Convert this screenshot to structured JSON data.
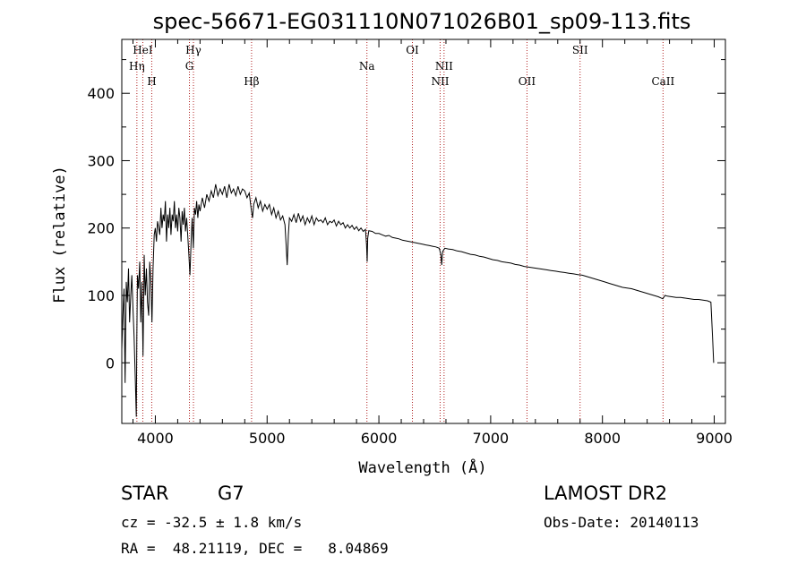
{
  "chart_data": {
    "type": "line",
    "title": "spec-56671-EG031110N071026B01_sp09-113.fits",
    "xlabel": "Wavelength (Å)",
    "ylabel": "Flux (relative)",
    "xlim": [
      3700,
      9100
    ],
    "ylim": [
      -90,
      480
    ],
    "x_ticks": [
      4000,
      5000,
      6000,
      7000,
      8000,
      9000
    ],
    "y_ticks": [
      0,
      100,
      200,
      300,
      400
    ],
    "grid": false,
    "series": [
      {
        "points": [
          [
            3700,
            20
          ],
          [
            3710,
            70
          ],
          [
            3720,
            110
          ],
          [
            3730,
            -30
          ],
          [
            3740,
            120
          ],
          [
            3750,
            90
          ],
          [
            3760,
            140
          ],
          [
            3770,
            60
          ],
          [
            3780,
            100
          ],
          [
            3790,
            130
          ],
          [
            3800,
            80
          ],
          [
            3810,
            40
          ],
          [
            3820,
            -20
          ],
          [
            3830,
            -80
          ],
          [
            3835,
            40
          ],
          [
            3840,
            130
          ],
          [
            3850,
            110
          ],
          [
            3860,
            150
          ],
          [
            3870,
            60
          ],
          [
            3880,
            120
          ],
          [
            3890,
            10
          ],
          [
            3900,
            160
          ],
          [
            3910,
            100
          ],
          [
            3920,
            140
          ],
          [
            3930,
            90
          ],
          [
            3940,
            70
          ],
          [
            3950,
            150
          ],
          [
            3960,
            120
          ],
          [
            3970,
            60
          ],
          [
            3980,
            140
          ],
          [
            3990,
            190
          ],
          [
            4000,
            200
          ],
          [
            4010,
            180
          ],
          [
            4020,
            210
          ],
          [
            4030,
            200
          ],
          [
            4040,
            190
          ],
          [
            4050,
            230
          ],
          [
            4060,
            200
          ],
          [
            4070,
            220
          ],
          [
            4080,
            210
          ],
          [
            4090,
            240
          ],
          [
            4100,
            180
          ],
          [
            4110,
            220
          ],
          [
            4120,
            200
          ],
          [
            4130,
            230
          ],
          [
            4140,
            190
          ],
          [
            4150,
            220
          ],
          [
            4160,
            210
          ],
          [
            4170,
            240
          ],
          [
            4180,
            200
          ],
          [
            4190,
            220
          ],
          [
            4200,
            195
          ],
          [
            4210,
            230
          ],
          [
            4220,
            215
          ],
          [
            4230,
            180
          ],
          [
            4240,
            225
          ],
          [
            4250,
            205
          ],
          [
            4260,
            230
          ],
          [
            4270,
            195
          ],
          [
            4280,
            215
          ],
          [
            4290,
            190
          ],
          [
            4300,
            160
          ],
          [
            4310,
            130
          ],
          [
            4320,
            180
          ],
          [
            4330,
            215
          ],
          [
            4340,
            170
          ],
          [
            4350,
            230
          ],
          [
            4360,
            220
          ],
          [
            4370,
            240
          ],
          [
            4380,
            215
          ],
          [
            4390,
            235
          ],
          [
            4400,
            225
          ],
          [
            4420,
            245
          ],
          [
            4440,
            230
          ],
          [
            4460,
            250
          ],
          [
            4480,
            240
          ],
          [
            4500,
            255
          ],
          [
            4520,
            245
          ],
          [
            4540,
            265
          ],
          [
            4560,
            248
          ],
          [
            4580,
            258
          ],
          [
            4600,
            250
          ],
          [
            4620,
            262
          ],
          [
            4640,
            245
          ],
          [
            4660,
            265
          ],
          [
            4680,
            252
          ],
          [
            4700,
            258
          ],
          [
            4720,
            248
          ],
          [
            4740,
            262
          ],
          [
            4760,
            250
          ],
          [
            4780,
            258
          ],
          [
            4800,
            255
          ],
          [
            4820,
            245
          ],
          [
            4840,
            252
          ],
          [
            4860,
            225
          ],
          [
            4870,
            215
          ],
          [
            4880,
            235
          ],
          [
            4900,
            245
          ],
          [
            4920,
            230
          ],
          [
            4940,
            240
          ],
          [
            4960,
            225
          ],
          [
            4980,
            235
          ],
          [
            5000,
            228
          ],
          [
            5020,
            235
          ],
          [
            5040,
            220
          ],
          [
            5060,
            230
          ],
          [
            5080,
            215
          ],
          [
            5100,
            225
          ],
          [
            5120,
            212
          ],
          [
            5140,
            218
          ],
          [
            5160,
            205
          ],
          [
            5170,
            175
          ],
          [
            5180,
            145
          ],
          [
            5190,
            190
          ],
          [
            5200,
            215
          ],
          [
            5220,
            210
          ],
          [
            5240,
            220
          ],
          [
            5260,
            208
          ],
          [
            5280,
            222
          ],
          [
            5300,
            210
          ],
          [
            5320,
            218
          ],
          [
            5340,
            205
          ],
          [
            5360,
            215
          ],
          [
            5380,
            208
          ],
          [
            5400,
            218
          ],
          [
            5420,
            205
          ],
          [
            5440,
            215
          ],
          [
            5460,
            210
          ],
          [
            5480,
            212
          ],
          [
            5500,
            208
          ],
          [
            5520,
            215
          ],
          [
            5540,
            205
          ],
          [
            5560,
            210
          ],
          [
            5580,
            208
          ],
          [
            5600,
            212
          ],
          [
            5620,
            203
          ],
          [
            5640,
            210
          ],
          [
            5660,
            205
          ],
          [
            5680,
            208
          ],
          [
            5700,
            200
          ],
          [
            5720,
            205
          ],
          [
            5740,
            200
          ],
          [
            5760,
            204
          ],
          [
            5780,
            198
          ],
          [
            5800,
            202
          ],
          [
            5820,
            196
          ],
          [
            5840,
            200
          ],
          [
            5860,
            195
          ],
          [
            5880,
            198
          ],
          [
            5890,
            175
          ],
          [
            5895,
            150
          ],
          [
            5900,
            185
          ],
          [
            5910,
            196
          ],
          [
            5940,
            195
          ],
          [
            5970,
            192
          ],
          [
            6000,
            192
          ],
          [
            6030,
            190
          ],
          [
            6060,
            188
          ],
          [
            6090,
            189
          ],
          [
            6120,
            186
          ],
          [
            6150,
            185
          ],
          [
            6180,
            184
          ],
          [
            6210,
            182
          ],
          [
            6240,
            181
          ],
          [
            6270,
            180
          ],
          [
            6300,
            179
          ],
          [
            6330,
            178
          ],
          [
            6360,
            177
          ],
          [
            6390,
            176
          ],
          [
            6420,
            175
          ],
          [
            6450,
            174
          ],
          [
            6480,
            173
          ],
          [
            6510,
            172
          ],
          [
            6540,
            170
          ],
          [
            6555,
            160
          ],
          [
            6562,
            145
          ],
          [
            6570,
            165
          ],
          [
            6590,
            170
          ],
          [
            6620,
            169
          ],
          [
            6660,
            168
          ],
          [
            6700,
            166
          ],
          [
            6740,
            165
          ],
          [
            6780,
            163
          ],
          [
            6820,
            161
          ],
          [
            6860,
            160
          ],
          [
            6900,
            158
          ],
          [
            6940,
            157
          ],
          [
            6980,
            155
          ],
          [
            7020,
            153
          ],
          [
            7060,
            152
          ],
          [
            7100,
            150
          ],
          [
            7140,
            149
          ],
          [
            7180,
            148
          ],
          [
            7220,
            146
          ],
          [
            7260,
            145
          ],
          [
            7300,
            143
          ],
          [
            7340,
            142
          ],
          [
            7380,
            141
          ],
          [
            7420,
            140
          ],
          [
            7460,
            139
          ],
          [
            7500,
            138
          ],
          [
            7540,
            137
          ],
          [
            7580,
            136
          ],
          [
            7620,
            135
          ],
          [
            7660,
            134
          ],
          [
            7700,
            133
          ],
          [
            7740,
            132
          ],
          [
            7780,
            131
          ],
          [
            7820,
            130
          ],
          [
            7860,
            128
          ],
          [
            7900,
            126
          ],
          [
            7940,
            124
          ],
          [
            7980,
            122
          ],
          [
            8020,
            120
          ],
          [
            8060,
            118
          ],
          [
            8100,
            116
          ],
          [
            8140,
            114
          ],
          [
            8180,
            112
          ],
          [
            8220,
            111
          ],
          [
            8260,
            110
          ],
          [
            8300,
            108
          ],
          [
            8340,
            106
          ],
          [
            8380,
            104
          ],
          [
            8420,
            102
          ],
          [
            8460,
            100
          ],
          [
            8500,
            98
          ],
          [
            8540,
            95
          ],
          [
            8560,
            100
          ],
          [
            8580,
            99
          ],
          [
            8620,
            98
          ],
          [
            8660,
            97
          ],
          [
            8700,
            97
          ],
          [
            8740,
            96
          ],
          [
            8780,
            95
          ],
          [
            8820,
            94
          ],
          [
            8860,
            94
          ],
          [
            8900,
            93
          ],
          [
            8940,
            92
          ],
          [
            8970,
            90
          ],
          [
            8985,
            40
          ],
          [
            8995,
            0
          ]
        ]
      }
    ],
    "lines": [
      {
        "label": "HeI",
        "wavelength": 3888,
        "row": 0
      },
      {
        "label": "Hη",
        "wavelength": 3835,
        "row": 1
      },
      {
        "label": "H",
        "wavelength": 3968,
        "row": 2
      },
      {
        "label": "Hγ",
        "wavelength": 4341,
        "row": 0
      },
      {
        "label": "G",
        "wavelength": 4305,
        "row": 1
      },
      {
        "label": "Hβ",
        "wavelength": 4861,
        "row": 2
      },
      {
        "label": "Na",
        "wavelength": 5893,
        "row": 1
      },
      {
        "label": "OI",
        "wavelength": 6300,
        "row": 0
      },
      {
        "label": "NII",
        "wavelength": 6583,
        "row": 1
      },
      {
        "label": "NII",
        "wavelength": 6548,
        "row": 2
      },
      {
        "label": "OII",
        "wavelength": 7325,
        "row": 2
      },
      {
        "label": "SII",
        "wavelength": 7800,
        "row": 0
      },
      {
        "label": "CaII",
        "wavelength": 8542,
        "row": 2
      }
    ],
    "line_color": "#b02020"
  },
  "info": {
    "class": "STAR",
    "subclass": "G7",
    "survey": "LAMOST DR2",
    "cz": "cz = -32.5 ± 1.8 km/s",
    "obs_date": "Obs-Date: 20140113",
    "coords": "RA =  48.21119, DEC =   8.04869"
  }
}
